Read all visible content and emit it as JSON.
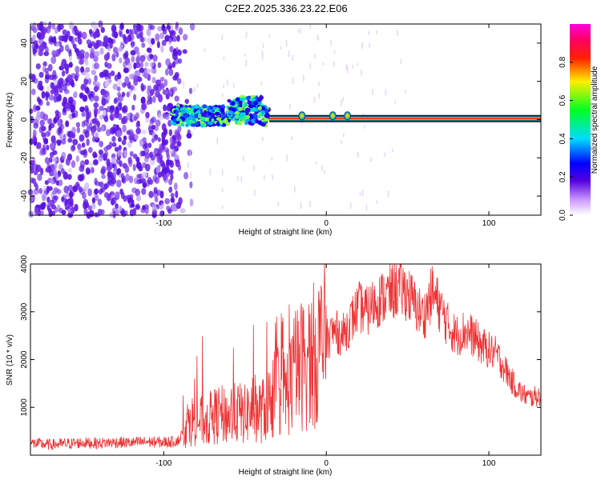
{
  "title": "C2E2.2025.336.23.22.E06",
  "chart_data": [
    {
      "type": "heatmap",
      "title": "C2E2.2025.336.23.22.E06",
      "xlabel": "Height of straight line (km)",
      "ylabel": "Frequency (Hz)",
      "xlim": [
        -182,
        132
      ],
      "ylim": [
        -50,
        50
      ],
      "xticks": [
        -100,
        0,
        100
      ],
      "yticks": [
        -40,
        -20,
        0,
        20,
        40
      ],
      "xtick_labels": [
        "-100",
        "0",
        "100"
      ],
      "ytick_labels": [
        "-40",
        "-20",
        "0",
        "20",
        "40"
      ],
      "colorbar": {
        "label": "Normalized spectral amplitude",
        "range": [
          0,
          1
        ],
        "ticks": [
          0.0,
          0.2,
          0.4,
          0.6,
          0.8
        ],
        "tick_labels": [
          "0.0",
          "0.2",
          "0.4",
          "0.6",
          "0.8"
        ]
      },
      "regions": [
        {
          "name": "diffuse noise",
          "x": [
            -182,
            -90
          ],
          "freq_range": [
            -50,
            50
          ],
          "amplitude": 0.25
        },
        {
          "name": "head echo scatter",
          "x": [
            -95,
            -35
          ],
          "freq_range": [
            -5,
            12
          ],
          "amplitude": 0.4
        },
        {
          "name": "narrow trail",
          "x": [
            -35,
            132
          ],
          "freq_center": 0.5,
          "amplitude": 1.0
        }
      ]
    },
    {
      "type": "line",
      "xlabel": "Height of straight line (km)",
      "ylabel": "SNR (10 * v/v)",
      "xlim": [
        -182,
        132
      ],
      "ylim": [
        0,
        4000
      ],
      "xticks": [
        -100,
        0,
        100
      ],
      "yticks": [
        1000,
        2000,
        3000,
        4000
      ],
      "xtick_labels": [
        "-100",
        "0",
        "100"
      ],
      "ytick_labels": [
        "1000",
        "2000",
        "3000",
        "4000"
      ],
      "color": "#ee3333",
      "series": [
        {
          "name": "SNR",
          "x": [
            -182,
            -170,
            -160,
            -150,
            -140,
            -130,
            -120,
            -110,
            -100,
            -95,
            -90,
            -85,
            -80,
            -75,
            -70,
            -65,
            -60,
            -55,
            -50,
            -45,
            -40,
            -35,
            -30,
            -25,
            -20,
            -15,
            -10,
            -5,
            0,
            5,
            10,
            15,
            20,
            25,
            30,
            35,
            40,
            45,
            50,
            55,
            60,
            65,
            70,
            75,
            80,
            85,
            90,
            95,
            100,
            105,
            110,
            115,
            120,
            125,
            132
          ],
          "values": [
            250,
            220,
            240,
            260,
            250,
            270,
            260,
            280,
            270,
            280,
            320,
            700,
            750,
            700,
            800,
            850,
            800,
            900,
            850,
            1000,
            900,
            1100,
            1400,
            1300,
            1700,
            1900,
            2000,
            2200,
            2400,
            2600,
            2500,
            2800,
            3100,
            3000,
            3200,
            3300,
            3400,
            3500,
            3400,
            3100,
            2900,
            3400,
            3100,
            2700,
            2500,
            2600,
            2500,
            2300,
            2200,
            2100,
            1800,
            1500,
            1300,
            1200,
            1250
          ]
        }
      ]
    }
  ]
}
